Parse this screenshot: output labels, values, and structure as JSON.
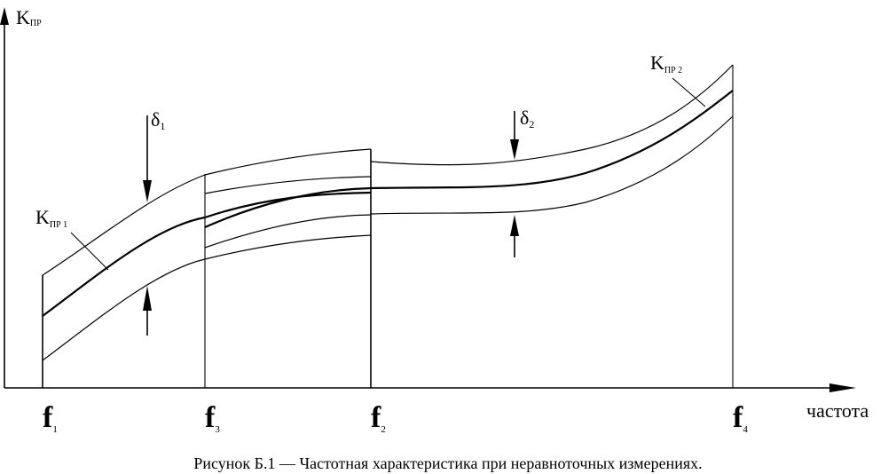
{
  "axis": {
    "y_label_main": "K",
    "y_label_sub": "ПР",
    "x_label": "частота"
  },
  "frequencies": [
    {
      "main": "f",
      "sub": "1"
    },
    {
      "main": "f",
      "sub": "3"
    },
    {
      "main": "f",
      "sub": "2"
    },
    {
      "main": "f",
      "sub": "4"
    }
  ],
  "curve_labels": [
    {
      "main": "K",
      "sub": "ПР 1"
    },
    {
      "main": "K",
      "sub": "ПР 2"
    }
  ],
  "deltas": [
    {
      "main": "δ",
      "sub": "1"
    },
    {
      "main": "δ",
      "sub": "2"
    }
  ],
  "caption": "Рисунок Б.1 — Частотная характеристика при неравноточных измерениях."
}
